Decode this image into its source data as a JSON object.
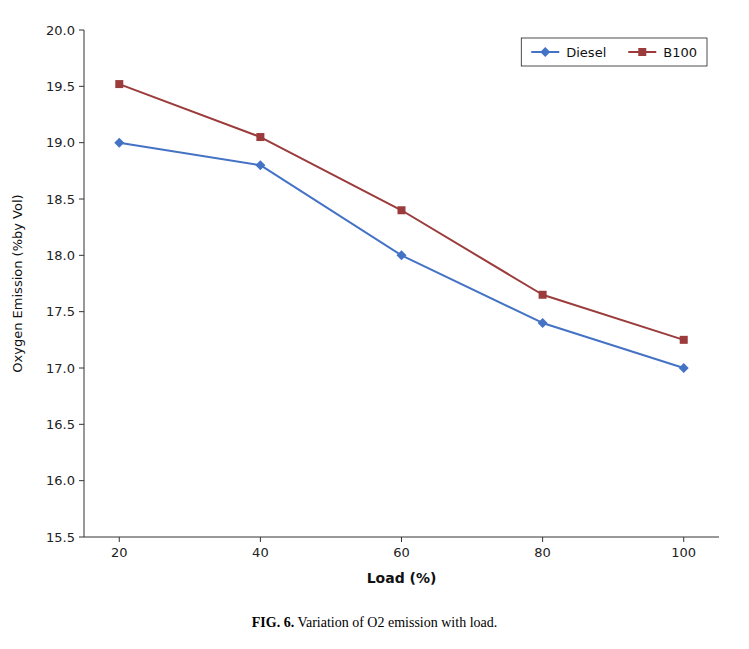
{
  "chart_data": {
    "type": "line",
    "x": [
      20,
      40,
      60,
      80,
      100
    ],
    "series": [
      {
        "name": "Diesel",
        "color": "#4472C4",
        "marker": "diamond",
        "values": [
          19.0,
          18.8,
          18.0,
          17.4,
          17.0
        ]
      },
      {
        "name": "B100",
        "color": "#9B3B3B",
        "marker": "square",
        "values": [
          19.52,
          19.05,
          18.4,
          17.65,
          17.25
        ]
      }
    ],
    "x_label": "Load (%)",
    "y_label": "Oxygen Emission (%by Vol)",
    "xlim": [
      15,
      105
    ],
    "xticks": [
      20,
      40,
      60,
      80,
      100
    ],
    "ylim": [
      15.5,
      20.0
    ],
    "yticks": [
      15.5,
      {
        "value": 16.0,
        "label": "16.0"
      },
      16.5,
      {
        "value": 17.0,
        "label": "17.0"
      },
      17.5,
      {
        "value": 18.0,
        "label": "18.0"
      },
      18.5,
      {
        "value": 19.0,
        "label": "19.0"
      },
      19.5,
      {
        "value": 20.0,
        "label": "20.0"
      }
    ],
    "annotations": [
      "FIG. 6.",
      " Variation of O2 emission with load."
    ],
    "legend": "upper right",
    "grid": false
  }
}
